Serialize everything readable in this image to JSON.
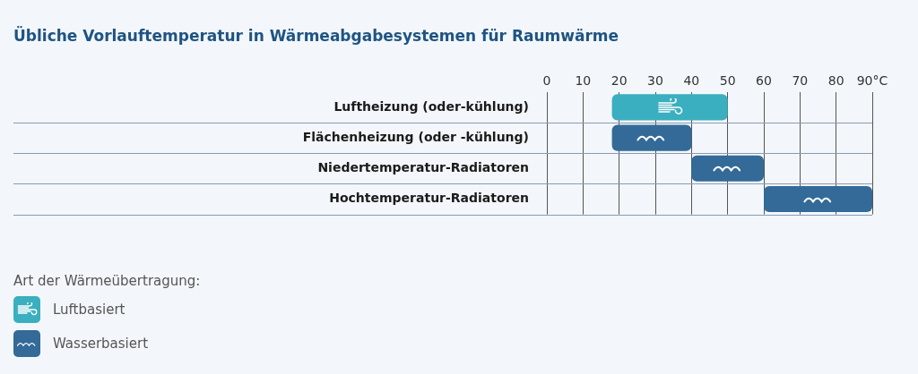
{
  "chart_data": {
    "type": "bar",
    "orientation": "horizontal",
    "title": "Übliche Vorlauftemperatur in Wärmeabgabesystemen für Raumwärme",
    "categories": [
      "Luftheizung (oder-kühlung)",
      "Flächenheizung (oder -kühlung)",
      "Niedertemperatur-Radiatoren",
      "Hochtemperatur-Radiatoren"
    ],
    "series": [
      {
        "name": "Luftbasiert",
        "color": "#3aafbf",
        "values": [
          32,
          null,
          null,
          null
        ],
        "base": [
          18,
          null,
          null,
          null
        ]
      },
      {
        "name": "Wasserbasiert",
        "color": "#336a98",
        "values": [
          null,
          22,
          20,
          30
        ],
        "base": [
          null,
          18,
          40,
          60
        ]
      }
    ],
    "xlim": [
      0,
      90
    ],
    "xticks": [
      0,
      10,
      20,
      30,
      40,
      50,
      60,
      70,
      80,
      {
        "value": 90,
        "label": "90°C"
      }
    ],
    "grid": true,
    "legend": "bottom left",
    "legend_title": "Art der Wärmeübertragung:"
  }
}
